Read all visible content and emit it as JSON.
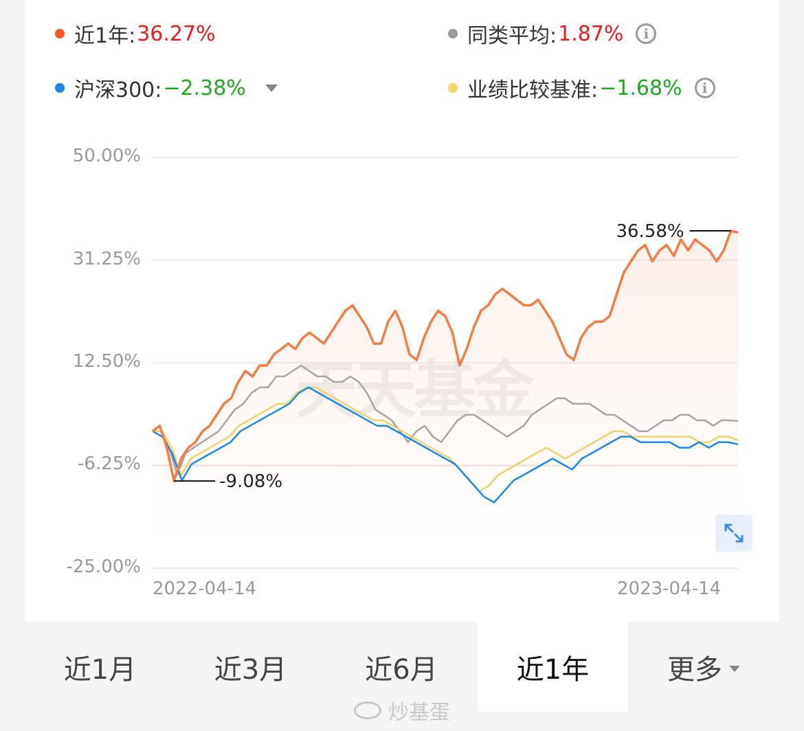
{
  "legend": {
    "fund": {
      "label": "近1年:",
      "value": "36.27%",
      "color": "#ff5722",
      "value_color": "#f01a1a"
    },
    "peer_avg": {
      "label": "同类平均:",
      "value": "1.87%",
      "color": "#999999",
      "value_color": "#f01a1a"
    },
    "index": {
      "label": "沪深300:",
      "value": "−2.38%",
      "color": "#1e88e5",
      "value_color": "#20a820"
    },
    "benchmark": {
      "label": "业绩比较基准:",
      "value": "−1.68%",
      "color": "#f5d76e",
      "value_color": "#20a820"
    },
    "info_glyph": "i"
  },
  "chart_data": {
    "type": "line",
    "y_tick_labels": [
      "50.00%",
      "31.25%",
      "12.50%",
      "-6.25%",
      "-25.00%"
    ],
    "ylim": [
      -25,
      50
    ],
    "x_start_label": "2022-04-14",
    "x_end_label": "2023-04-14",
    "max_annotation": "36.58%",
    "min_annotation": "-9.08%",
    "watermark": "天天基金",
    "series": [
      {
        "key": "fund",
        "color": "#f57c45",
        "values": [
          0,
          1,
          -3,
          -9.08,
          -5,
          -3,
          -2,
          0,
          1,
          3,
          5,
          6,
          9,
          11,
          10,
          12,
          12,
          14,
          15,
          16,
          15,
          17,
          18,
          17,
          16,
          18,
          20,
          22,
          23,
          21,
          19,
          16,
          16,
          20,
          22,
          19,
          14,
          13,
          17,
          20,
          22,
          21,
          18,
          12,
          15,
          19,
          22,
          23,
          25,
          26,
          25,
          24,
          23,
          23,
          24,
          22,
          20,
          17,
          14,
          13,
          17,
          19,
          20,
          20,
          21,
          25,
          29,
          31,
          33,
          34,
          31,
          33,
          34,
          32,
          35,
          33,
          35,
          34,
          33,
          31,
          33,
          36.58,
          36.27
        ]
      },
      {
        "key": "peer",
        "color": "#a6a6a6",
        "values": [
          0,
          0,
          -3,
          -8,
          -4,
          -3,
          -2,
          -1,
          0,
          2,
          4,
          5,
          7,
          8,
          8,
          10,
          10,
          11,
          12,
          11,
          10,
          10,
          9,
          9,
          10,
          9,
          7,
          4,
          3,
          2,
          0,
          -2,
          0,
          1,
          -1,
          -2,
          0,
          2,
          3,
          3,
          2,
          1,
          0,
          -1,
          0,
          1,
          3,
          4,
          5,
          6,
          6,
          5,
          5,
          5,
          4,
          3,
          3,
          2,
          1,
          0,
          0,
          1,
          2,
          2,
          3,
          3,
          2,
          2,
          1,
          2,
          2,
          1.87
        ]
      },
      {
        "key": "benchmark",
        "color": "#f2d26d",
        "values": [
          0,
          0,
          -3,
          -8,
          -5,
          -4,
          -3,
          -2,
          -1,
          1,
          2,
          3,
          4,
          5,
          5,
          7,
          8,
          8,
          7,
          6,
          5,
          4,
          3,
          2,
          2,
          1,
          0,
          -1,
          -2,
          -3,
          -4,
          -5,
          -7,
          -9,
          -11,
          -10,
          -8,
          -7,
          -6,
          -5,
          -4,
          -3,
          -4,
          -5,
          -4,
          -3,
          -2,
          -1,
          0,
          0,
          -1,
          -1,
          -1,
          -1,
          -1,
          -1,
          -1,
          -2,
          -2,
          -1,
          -1,
          -1.68
        ]
      },
      {
        "key": "index",
        "color": "#1e88e5",
        "values": [
          0,
          -1,
          -4,
          -9,
          -6,
          -5,
          -4,
          -3,
          -2,
          0,
          1,
          2,
          3,
          4,
          5,
          7,
          8,
          7,
          6,
          5,
          4,
          3,
          2,
          1,
          1,
          0,
          -1,
          -2,
          -3,
          -4,
          -5,
          -6,
          -8,
          -10,
          -12,
          -13,
          -11,
          -9,
          -8,
          -7,
          -6,
          -5,
          -6,
          -7,
          -5,
          -4,
          -3,
          -2,
          -1,
          -1,
          -2,
          -2,
          -2,
          -2,
          -3,
          -3,
          -2,
          -3,
          -2,
          -2,
          -2.38
        ]
      }
    ]
  },
  "tabs": [
    "近1月",
    "近3月",
    "近6月",
    "近1年",
    "更多"
  ],
  "active_tab": "近1年",
  "credit": "炒基蛋"
}
